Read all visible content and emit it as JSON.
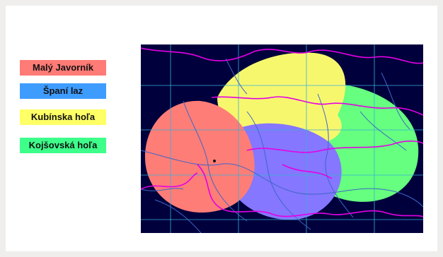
{
  "legend": {
    "items": [
      {
        "label": "Malý Javorník",
        "color": "#ff7b76"
      },
      {
        "label": "Španí laz",
        "color": "#3f9cff"
      },
      {
        "label": "Kubínska hoľa",
        "color": "#ffff66"
      },
      {
        "label": "Kojšovská hoľa",
        "color": "#3dff8a"
      }
    ]
  },
  "map": {
    "background_color": "#00003c",
    "coverage": [
      {
        "transmitter": "Kojšovská hoľa",
        "color": "#66ff7f"
      },
      {
        "transmitter": "Kubínska hoľa",
        "color": "#f7f76e"
      },
      {
        "transmitter": "Španí laz",
        "color": "#8577ff"
      },
      {
        "transmitter": "Malý Javorník",
        "color": "#ff7d77"
      }
    ],
    "border_color": "#e400e4",
    "river_color": "#3d66c8",
    "grid_color": "#38b0d8"
  }
}
